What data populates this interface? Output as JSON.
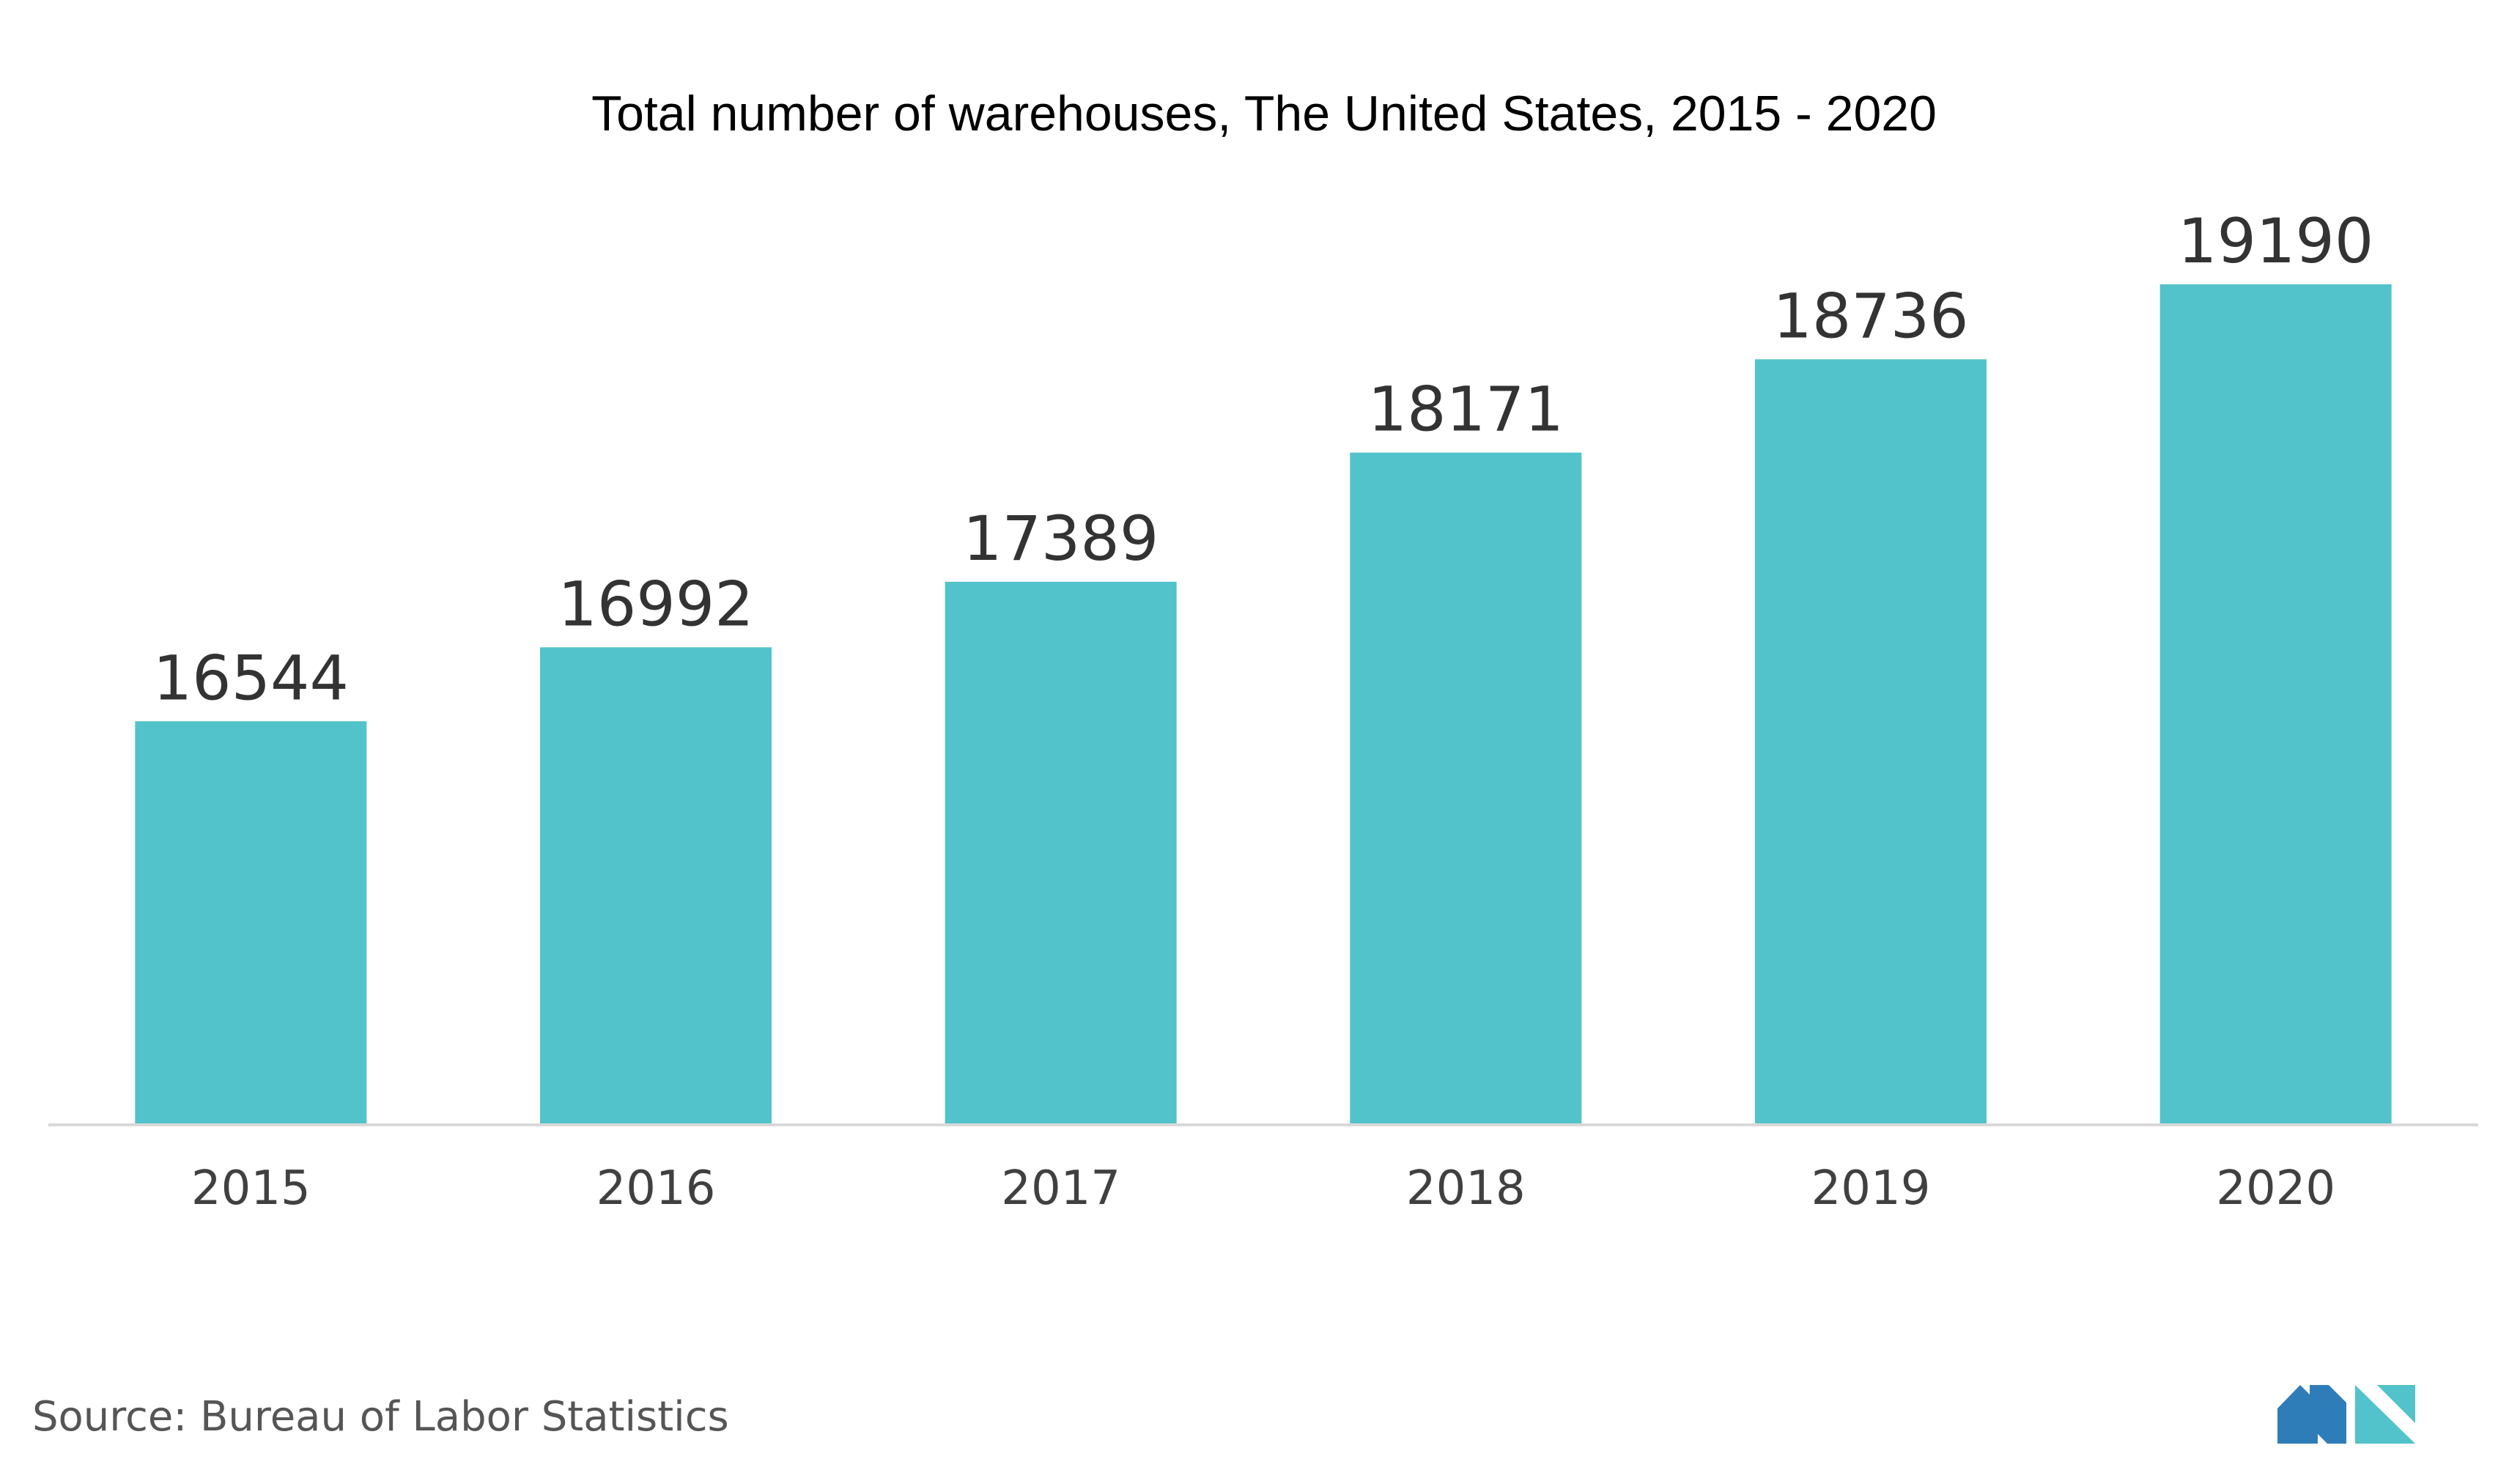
{
  "chart_data": {
    "type": "bar",
    "title": "Total number of warehouses, The United States, 2015 - 2020",
    "categories": [
      "2015",
      "2016",
      "2017",
      "2018",
      "2019",
      "2020"
    ],
    "values": [
      16544,
      16992,
      17389,
      18171,
      18736,
      19190
    ],
    "data_labels": [
      "16544",
      "16992",
      "17389",
      "18171",
      "18736",
      "19190"
    ],
    "xlabel": "",
    "ylabel": "",
    "ylim": [
      14100,
      19900
    ],
    "grid": false,
    "legend": "none",
    "bar_color": "#52C3CA",
    "baseline_color": "#D9D9D9"
  },
  "source": {
    "text": "Source: Bureau of Labor Statistics"
  },
  "logo": {
    "name": "mordor-intelligence-logo-icon",
    "colors": [
      "#2F7DB8",
      "#52C3CA"
    ]
  }
}
